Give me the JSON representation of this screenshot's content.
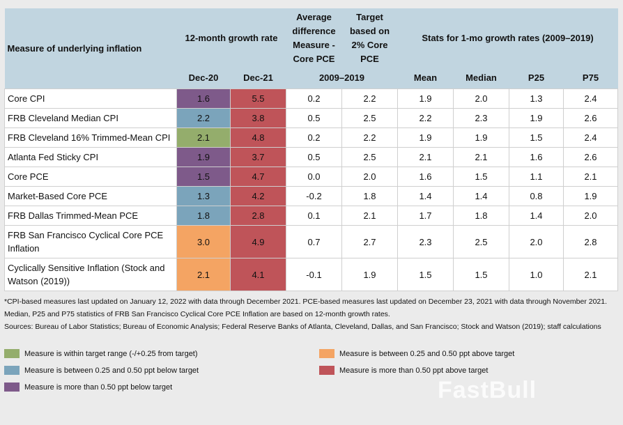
{
  "header": {
    "measure": "Measure of underlying inflation",
    "growth": "12-month growth rate",
    "avg_diff": "Average difference Measure - Core PCE",
    "target": "Target based on 2% Core PCE",
    "stats": "Stats for 1-mo growth rates (2009–2019)",
    "dec20": "Dec-20",
    "dec21": "Dec-21",
    "period": "2009–2019",
    "mean": "Mean",
    "median": "Median",
    "p25": "P25",
    "p75": "P75"
  },
  "colors": {
    "green": "#94ad6c",
    "blue": "#7ba4bb",
    "purple": "#7e5a8a",
    "orange": "#f4a463",
    "red": "#bf5459"
  },
  "rows": [
    {
      "name": "Core CPI",
      "dec20": "1.6",
      "c20": "purple",
      "dec21": "5.5",
      "c21": "red",
      "avg": "0.2",
      "target": "2.2",
      "mean": "1.9",
      "median": "2.0",
      "p25": "1.3",
      "p75": "2.4"
    },
    {
      "name": "FRB Cleveland Median CPI",
      "dec20": "2.2",
      "c20": "blue",
      "dec21": "3.8",
      "c21": "red",
      "avg": "0.5",
      "target": "2.5",
      "mean": "2.2",
      "median": "2.3",
      "p25": "1.9",
      "p75": "2.6"
    },
    {
      "name": "FRB Cleveland 16% Trimmed-Mean CPI",
      "dec20": "2.1",
      "c20": "green",
      "dec21": "4.8",
      "c21": "red",
      "avg": "0.2",
      "target": "2.2",
      "mean": "1.9",
      "median": "1.9",
      "p25": "1.5",
      "p75": "2.4"
    },
    {
      "name": "Atlanta Fed Sticky CPI",
      "dec20": "1.9",
      "c20": "purple",
      "dec21": "3.7",
      "c21": "red",
      "avg": "0.5",
      "target": "2.5",
      "mean": "2.1",
      "median": "2.1",
      "p25": "1.6",
      "p75": "2.6"
    },
    {
      "name": "Core PCE",
      "dec20": "1.5",
      "c20": "purple",
      "dec21": "4.7",
      "c21": "red",
      "avg": "0.0",
      "target": "2.0",
      "mean": "1.6",
      "median": "1.5",
      "p25": "1.1",
      "p75": "2.1"
    },
    {
      "name": "Market-Based Core PCE",
      "dec20": "1.3",
      "c20": "blue",
      "dec21": "4.2",
      "c21": "red",
      "avg": "-0.2",
      "target": "1.8",
      "mean": "1.4",
      "median": "1.4",
      "p25": "0.8",
      "p75": "1.9"
    },
    {
      "name": "FRB Dallas Trimmed-Mean PCE",
      "dec20": "1.8",
      "c20": "blue",
      "dec21": "2.8",
      "c21": "red",
      "avg": "0.1",
      "target": "2.1",
      "mean": "1.7",
      "median": "1.8",
      "p25": "1.4",
      "p75": "2.0"
    },
    {
      "name": "FRB San Francisco Cyclical Core PCE Inflation",
      "dec20": "3.0",
      "c20": "orange",
      "dec21": "4.9",
      "c21": "red",
      "avg": "0.7",
      "target": "2.7",
      "mean": "2.3",
      "median": "2.5",
      "p25": "2.0",
      "p75": "2.8"
    },
    {
      "name": "Cyclically Sensitive Inflation (Stock and Watson (2019))",
      "dec20": "2.1",
      "c20": "orange",
      "dec21": "4.1",
      "c21": "red",
      "avg": "-0.1",
      "target": "1.9",
      "mean": "1.5",
      "median": "1.5",
      "p25": "1.0",
      "p75": "2.1"
    }
  ],
  "footnote": "*CPI-based measures last updated on January 12, 2022 with data through December 2021. PCE-based measures last updated on December 23, 2021 with data through November 2021. Median, P25 and P75 statistics of FRB San Francisco Cyclical Core PCE Inflation are based on 12-month growth rates.",
  "sources": "Sources: Bureau of Labor Statistics; Bureau of Economic Analysis; Federal Reserve Banks of Atlanta, Cleveland, Dallas, and San Francisco; Stock and Watson (2019); staff calculations",
  "legend": [
    {
      "color": "green",
      "label": "Measure is within target range (-/+0.25 from target)"
    },
    {
      "color": "blue",
      "label": "Measure is between 0.25 and 0.50 ppt below target"
    },
    {
      "color": "purple",
      "label": "Measure is more than 0.50 ppt below target"
    },
    {
      "color": "orange",
      "label": "Measure is between 0.25 and 0.50 ppt above target"
    },
    {
      "color": "red",
      "label": "Measure is more than 0.50 ppt above target"
    }
  ],
  "watermark": "FastBull"
}
